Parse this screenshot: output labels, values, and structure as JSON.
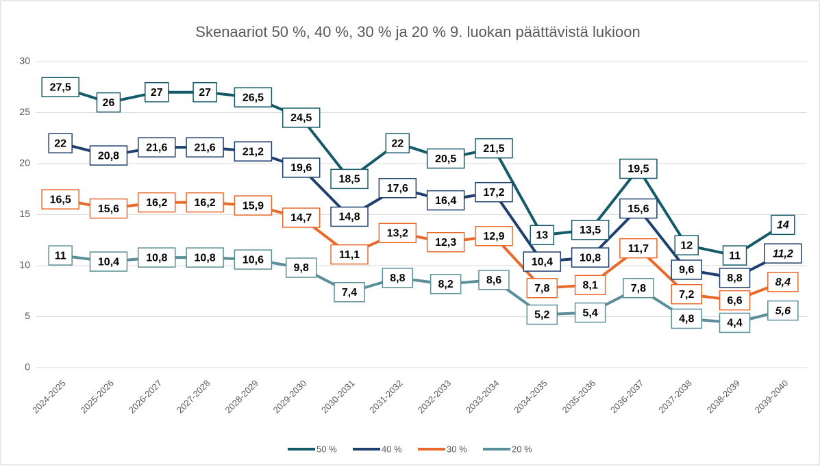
{
  "chart_data": {
    "type": "line",
    "title": "Skenaariot 50 %, 40 %, 30 % ja 20 % 9. luokan päättävistä lukioon",
    "categories": [
      "2024-2025",
      "2025-2026",
      "2026-2027",
      "2027-2028",
      "2028-2029",
      "2029-2030",
      "2030-2031",
      "2031-2032",
      "2032-2033",
      "2033-2034",
      "2034-2035",
      "2035-2036",
      "2036-2037",
      "2037-2038",
      "2038-2039",
      "2039-2040"
    ],
    "series": [
      {
        "name": "50 %",
        "color": "#145a68",
        "values": [
          27.5,
          26,
          27,
          27,
          26.5,
          24.5,
          18.5,
          22,
          20.5,
          21.5,
          13,
          13.5,
          19.5,
          12,
          11,
          14
        ],
        "value_labels": [
          "27,5",
          "26",
          "27",
          "27",
          "26,5",
          "24,5",
          "18,5",
          "22",
          "20,5",
          "21,5",
          "13",
          "13,5",
          "19,5",
          "12",
          "11",
          "14"
        ]
      },
      {
        "name": "40 %",
        "color": "#1f3f6e",
        "values": [
          22,
          20.8,
          21.6,
          21.6,
          21.2,
          19.6,
          14.8,
          17.6,
          16.4,
          17.2,
          10.4,
          10.8,
          15.6,
          9.6,
          8.8,
          11.2
        ],
        "value_labels": [
          "22",
          "20,8",
          "21,6",
          "21,6",
          "21,2",
          "19,6",
          "14,8",
          "17,6",
          "16,4",
          "17,2",
          "10,4",
          "10,8",
          "15,6",
          "9,6",
          "8,8",
          "11,2"
        ]
      },
      {
        "name": "30 %",
        "color": "#e8692a",
        "values": [
          16.5,
          15.6,
          16.2,
          16.2,
          15.9,
          14.7,
          11.1,
          13.2,
          12.3,
          12.9,
          7.8,
          8.1,
          11.7,
          7.2,
          6.6,
          8.4
        ],
        "value_labels": [
          "16,5",
          "15,6",
          "16,2",
          "16,2",
          "15,9",
          "14,7",
          "11,1",
          "13,2",
          "12,3",
          "12,9",
          "7,8",
          "8,1",
          "11,7",
          "7,2",
          "6,6",
          "8,4"
        ]
      },
      {
        "name": "20 %",
        "color": "#5a8f99",
        "values": [
          11,
          10.4,
          10.8,
          10.8,
          10.6,
          9.8,
          7.4,
          8.8,
          8.2,
          8.6,
          5.2,
          5.4,
          7.8,
          4.8,
          4.4,
          5.6
        ],
        "value_labels": [
          "11",
          "10,4",
          "10,8",
          "10,8",
          "10,6",
          "9,8",
          "7,4",
          "8,8",
          "8,2",
          "8,6",
          "5,2",
          "5,4",
          "7,8",
          "4,8",
          "4,4",
          "5,6"
        ]
      }
    ],
    "ylim": [
      0,
      30
    ],
    "yticks": [
      0,
      5,
      10,
      15,
      20,
      25,
      30
    ],
    "grid": true,
    "legend": "bottom"
  }
}
